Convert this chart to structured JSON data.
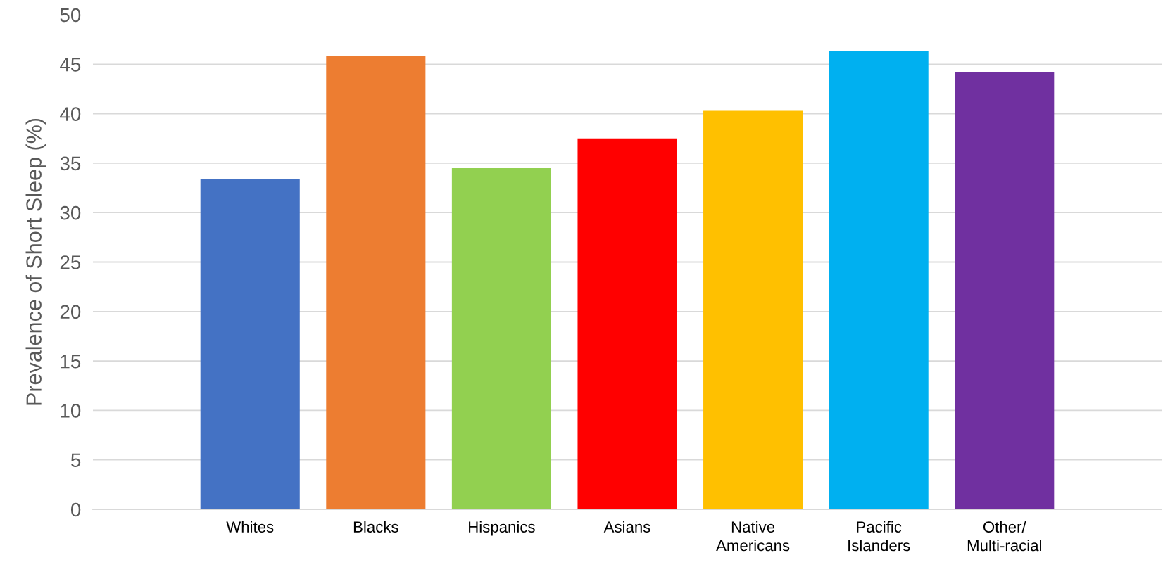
{
  "chart_data": {
    "type": "bar",
    "ylabel": "Prevalence of Short Sleep (%)",
    "categories": [
      "Whites",
      "Blacks",
      "Hispanics",
      "Asians",
      "Native\nAmericans",
      "Pacific\nIslanders",
      "Other/\nMulti-racial"
    ],
    "values": [
      33.4,
      45.8,
      34.5,
      37.5,
      40.3,
      46.3,
      44.2
    ],
    "colors": [
      "#4472c4",
      "#ed7d31",
      "#92d050",
      "#ff0000",
      "#ffc000",
      "#00b0f0",
      "#7030a0"
    ],
    "ylim": [
      0,
      50
    ],
    "yticks": [
      0,
      5,
      10,
      15,
      20,
      25,
      30,
      35,
      40,
      45,
      50
    ],
    "grid": "y"
  }
}
